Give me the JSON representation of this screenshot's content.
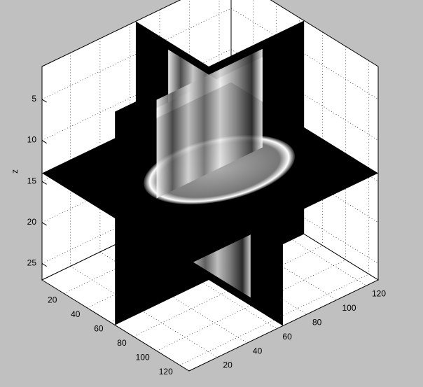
{
  "chart_data": {
    "type": "slice",
    "zlabel": "z",
    "xlim": [
      1,
      128
    ],
    "ylim": [
      1,
      128
    ],
    "zlim": [
      1,
      27
    ],
    "xticks": [
      20,
      40,
      60,
      80,
      100,
      120
    ],
    "yticks": [
      20,
      40,
      60,
      80,
      100,
      120
    ],
    "zticks": [
      5,
      10,
      15,
      20,
      25
    ],
    "zdir": "reverse",
    "grid": true,
    "slices": {
      "x": [
        64
      ],
      "y": [
        64
      ],
      "z": [
        14
      ]
    },
    "slice_color": "#000000"
  }
}
